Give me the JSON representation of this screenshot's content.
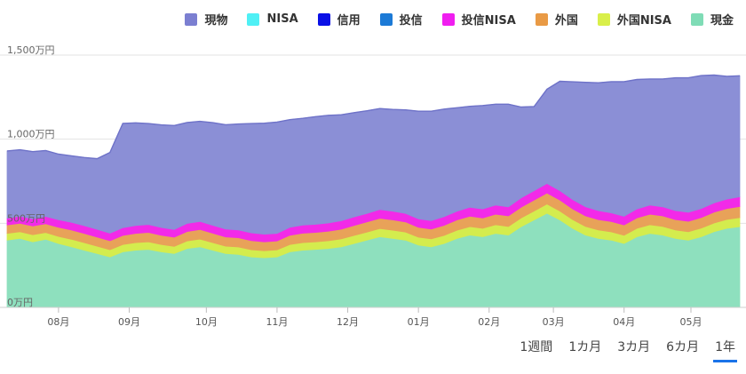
{
  "legend": [
    {
      "label": "現物",
      "color": "#7b7fd1"
    },
    {
      "label": "NISA",
      "color": "#4ff0f5"
    },
    {
      "label": "信用",
      "color": "#0a10e6"
    },
    {
      "label": "投信",
      "color": "#1c7ad6"
    },
    {
      "label": "投信NISA",
      "color": "#f01ef0"
    },
    {
      "label": "外国",
      "color": "#e99a45"
    },
    {
      "label": "外国NISA",
      "color": "#d9ef4a"
    },
    {
      "label": "現金",
      "color": "#7fdcb6"
    }
  ],
  "tabs": [
    {
      "label": "1週間",
      "active": false
    },
    {
      "label": "1カ月",
      "active": false
    },
    {
      "label": "3カ月",
      "active": false
    },
    {
      "label": "6カ月",
      "active": false
    },
    {
      "label": "1年",
      "active": true
    }
  ],
  "chart_data": {
    "type": "area",
    "stacked": true,
    "y_unit": "万円",
    "ylim": [
      0,
      1500
    ],
    "y_ticks": [
      "0万円",
      "500万円",
      "1,000万円",
      "1,500万円"
    ],
    "y_tick_values": [
      0,
      500,
      1000,
      1500
    ],
    "x_ticks": [
      "08月",
      "09月",
      "10月",
      "11月",
      "12月",
      "01月",
      "02月",
      "03月",
      "04月",
      "05月"
    ],
    "x_tick_index": [
      4,
      9.5,
      15.5,
      21,
      26.5,
      32,
      37.5,
      42.5,
      48,
      53.2
    ],
    "grid": true,
    "series": [
      {
        "name": "現金",
        "color": "#8ee0be",
        "values": [
          400,
          410,
          390,
          405,
          380,
          360,
          340,
          320,
          300,
          330,
          340,
          345,
          330,
          320,
          350,
          360,
          340,
          320,
          315,
          300,
          295,
          300,
          330,
          340,
          345,
          350,
          360,
          380,
          400,
          420,
          410,
          400,
          370,
          360,
          380,
          410,
          430,
          420,
          440,
          430,
          480,
          520,
          560,
          520,
          470,
          430,
          410,
          400,
          380,
          420,
          440,
          430,
          410,
          400,
          420,
          450,
          470,
          480
        ]
      },
      {
        "name": "外国NISA",
        "color": "#d4ec4e",
        "values": [
          40,
          40,
          42,
          40,
          42,
          45,
          45,
          44,
          43,
          44,
          45,
          45,
          44,
          43,
          45,
          46,
          45,
          44,
          44,
          43,
          42,
          42,
          44,
          45,
          45,
          46,
          47,
          48,
          48,
          49,
          49,
          48,
          47,
          47,
          48,
          49,
          50,
          50,
          51,
          51,
          52,
          53,
          54,
          53,
          52,
          51,
          50,
          49,
          49,
          50,
          51,
          51,
          50,
          50,
          51,
          52,
          53,
          54
        ]
      },
      {
        "name": "外国",
        "color": "#e8a259",
        "values": [
          50,
          50,
          52,
          52,
          54,
          55,
          55,
          54,
          53,
          54,
          55,
          56,
          55,
          54,
          56,
          57,
          56,
          55,
          55,
          54,
          53,
          53,
          55,
          56,
          56,
          57,
          58,
          59,
          60,
          61,
          61,
          60,
          59,
          59,
          60,
          61,
          62,
          62,
          63,
          63,
          64,
          65,
          66,
          65,
          64,
          63,
          62,
          61,
          61,
          62,
          63,
          63,
          62,
          62,
          63,
          64,
          65,
          66
        ]
      },
      {
        "name": "投信NISA",
        "color": "#f22ae8",
        "values": [
          40,
          42,
          42,
          44,
          45,
          46,
          46,
          46,
          45,
          46,
          47,
          47,
          46,
          46,
          48,
          48,
          47,
          47,
          46,
          46,
          45,
          45,
          47,
          48,
          48,
          49,
          50,
          51,
          51,
          52,
          52,
          51,
          50,
          50,
          51,
          52,
          53,
          53,
          54,
          54,
          55,
          56,
          57,
          56,
          55,
          54,
          53,
          52,
          52,
          53,
          54,
          54,
          53,
          53,
          54,
          55,
          56,
          57
        ]
      },
      {
        "name": "現物",
        "color": "#8b8fd6",
        "values": [
          400,
          395,
          400,
          392,
          390,
          395,
          405,
          420,
          480,
          620,
          610,
          600,
          610,
          618,
          600,
          595,
          610,
          620,
          630,
          650,
          660,
          662,
          640,
          635,
          640,
          640,
          630,
          620,
          610,
          600,
          605,
          615,
          640,
          650,
          640,
          615,
          600,
          615,
          600,
          610,
          540,
          500,
          560,
          650,
          700,
          740,
          760,
          780,
          800,
          770,
          750,
          760,
          790,
          800,
          790,
          760,
          730,
          720
        ]
      }
    ]
  }
}
